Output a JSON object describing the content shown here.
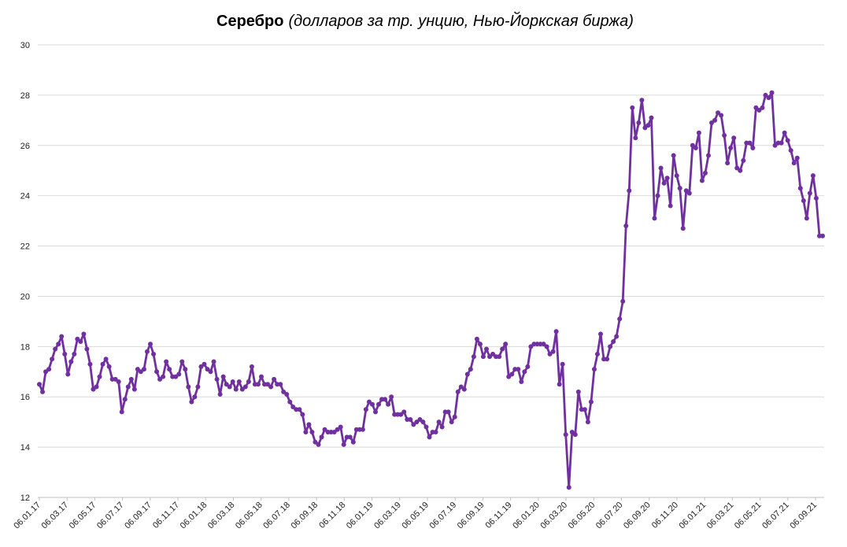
{
  "chart_data": {
    "type": "line",
    "title": "Серебро",
    "subtitle": "(долларов за тр. унцию, Нью-Йоркская биржа)",
    "xlabel": "",
    "ylabel": "",
    "ylim": [
      12,
      30
    ],
    "yticks": [
      12,
      14,
      16,
      18,
      20,
      22,
      24,
      26,
      28,
      30
    ],
    "grid": true,
    "legend": "none",
    "x_tick_labels": [
      "06.01.17",
      "06.03.17",
      "06.05.17",
      "06.07.17",
      "06.09.17",
      "06.11.17",
      "06.01.18",
      "06.03.18",
      "06.05.18",
      "06.07.18",
      "06.09.18",
      "06.11.18",
      "06.01.19",
      "06.03.19",
      "06.05.19",
      "06.07.19",
      "06.09.19",
      "06.11.19",
      "06.01.20",
      "06.03.20",
      "06.05.20",
      "06.07.20",
      "06.09.20",
      "06.11.20",
      "06.01.21",
      "06.03.21",
      "06.05.21",
      "06.07.21",
      "06.09.21"
    ],
    "colors": {
      "line": "#7030a0",
      "grid": "#d9d9d9"
    },
    "series": [
      {
        "values": [
          16.5,
          16.2,
          17.0,
          17.1,
          17.5,
          17.9,
          18.1,
          18.4,
          17.7,
          16.9,
          17.4,
          17.7,
          18.3,
          18.2,
          18.5,
          17.9,
          17.3,
          16.3,
          16.4,
          16.8,
          17.3,
          17.5,
          17.2,
          16.7,
          16.7,
          16.6,
          15.4,
          15.9,
          16.4,
          16.7,
          16.3,
          17.1,
          17.0,
          17.1,
          17.8,
          18.1,
          17.7,
          17.0,
          16.7,
          16.8,
          17.4,
          17.1,
          16.8,
          16.8,
          16.9,
          17.4,
          17.1,
          16.4,
          15.8,
          16.0,
          16.4,
          17.2,
          17.3,
          17.1,
          17.0,
          17.4,
          16.7,
          16.1,
          16.8,
          16.5,
          16.4,
          16.6,
          16.3,
          16.6,
          16.3,
          16.4,
          16.6,
          17.2,
          16.5,
          16.5,
          16.8,
          16.5,
          16.5,
          16.4,
          16.7,
          16.5,
          16.5,
          16.2,
          16.1,
          15.8,
          15.6,
          15.5,
          15.5,
          15.3,
          14.6,
          14.9,
          14.6,
          14.2,
          14.1,
          14.4,
          14.7,
          14.6,
          14.6,
          14.6,
          14.7,
          14.8,
          14.1,
          14.4,
          14.4,
          14.2,
          14.7,
          14.7,
          14.7,
          15.5,
          15.8,
          15.7,
          15.4,
          15.7,
          15.9,
          15.9,
          15.7,
          16.0,
          15.3,
          15.3,
          15.3,
          15.4,
          15.1,
          15.1,
          14.9,
          15.0,
          15.1,
          15.0,
          14.8,
          14.4,
          14.6,
          14.6,
          15.0,
          14.8,
          15.4,
          15.4,
          15.0,
          15.2,
          16.2,
          16.4,
          16.3,
          16.9,
          17.1,
          17.6,
          18.3,
          18.1,
          17.6,
          17.9,
          17.6,
          17.7,
          17.6,
          17.6,
          17.9,
          18.1,
          16.8,
          16.9,
          17.1,
          17.1,
          16.6,
          17.0,
          17.2,
          18.0,
          18.1,
          18.1,
          18.1,
          18.1,
          18.0,
          17.7,
          17.8,
          18.6,
          16.5,
          17.3,
          14.5,
          12.4,
          14.6,
          14.5,
          16.2,
          15.5,
          15.5,
          15.0,
          15.8,
          17.1,
          17.7,
          18.5,
          17.5,
          17.5,
          18.0,
          18.2,
          18.4,
          19.1,
          19.8,
          22.8,
          24.2,
          27.5,
          26.3,
          26.9,
          27.8,
          26.7,
          26.8,
          27.1,
          23.1,
          24.0,
          25.1,
          24.5,
          24.7,
          23.6,
          25.6,
          24.8,
          24.3,
          22.7,
          24.2,
          24.1,
          26.0,
          25.9,
          26.5,
          24.6,
          24.9,
          25.6,
          26.9,
          27.0,
          27.3,
          27.2,
          26.4,
          25.3,
          25.9,
          26.3,
          25.1,
          25.0,
          25.4,
          26.1,
          26.1,
          25.9,
          27.5,
          27.4,
          27.5,
          28.0,
          27.9,
          28.1,
          26.0,
          26.1,
          26.1,
          26.5,
          26.2,
          25.8,
          25.3,
          25.5,
          24.3,
          23.8,
          23.1,
          24.1,
          24.8,
          23.9,
          22.4,
          22.4
        ]
      }
    ]
  }
}
